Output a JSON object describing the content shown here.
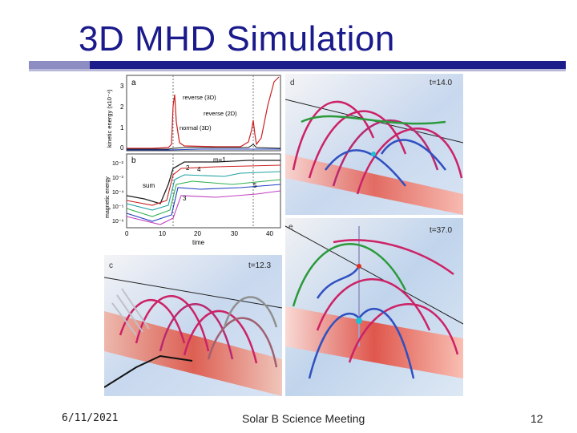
{
  "slide": {
    "title": "3D MHD Simulation",
    "footer_date": "6/11/2021",
    "footer_center": "Solar B Science Meeting",
    "footer_page": "12"
  },
  "figure": {
    "panel_a": {
      "label": "a",
      "ylabel": "kinetic energy (x10⁻⁴)",
      "yticks": [
        "3",
        "2",
        "1",
        "0"
      ],
      "annotations": [
        "reverse (3D)",
        "reverse (2D)",
        "normal (3D)"
      ]
    },
    "panel_b": {
      "label": "b",
      "ylabel": "magnetic energy",
      "yticks": [
        "10⁻²",
        "10⁻³",
        "10⁻⁴",
        "10⁻⁵",
        "10⁻⁶"
      ],
      "annotations": [
        "m=1",
        "2",
        "4",
        "sum",
        "3",
        "5"
      ],
      "xticks": [
        "0",
        "10",
        "20",
        "30",
        "40"
      ],
      "xlabel": "time"
    },
    "panel_c": {
      "label": "c",
      "time": "t=12.3"
    },
    "panel_d": {
      "label": "d",
      "time": "t=14.0"
    },
    "panel_e": {
      "label": "e",
      "time": "t=37.0"
    }
  },
  "colors": {
    "title": "#1a1a8c",
    "rule": "#1c1c8a",
    "field_red": "#cc2266",
    "field_green": "#2a9a3a",
    "field_blue": "#3050c0"
  }
}
